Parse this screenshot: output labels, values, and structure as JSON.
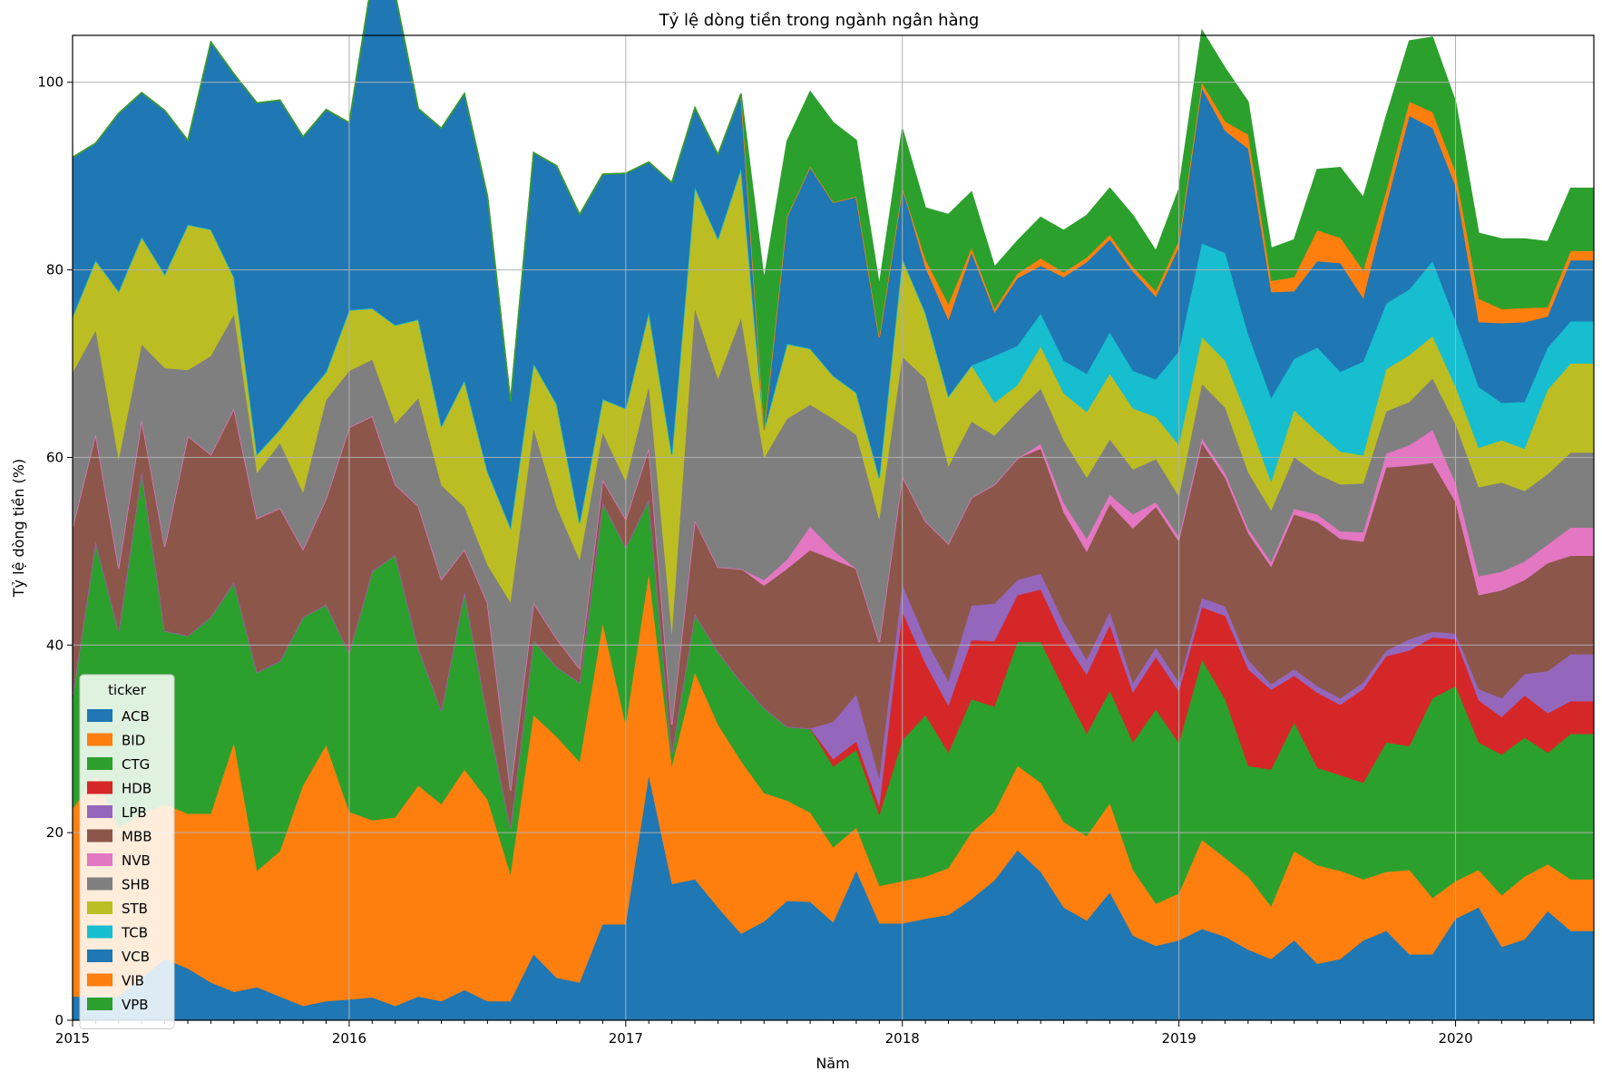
{
  "chart_data": {
    "type": "area",
    "stacked": true,
    "title": "Tỷ lệ dòng tiền trong ngành ngân hàng",
    "xlabel": "Năm",
    "ylabel": "Tỷ lệ dòng tiền (%)",
    "x_start": "2015-01",
    "x_end": "2020-07",
    "x_major_ticks": [
      "2015",
      "2016",
      "2017",
      "2018",
      "2019",
      "2020"
    ],
    "ylim": [
      0,
      105
    ],
    "y_ticks": [
      0,
      20,
      40,
      60,
      80,
      100
    ],
    "grid": true,
    "legend": {
      "title": "ticker",
      "position": "lower-left"
    },
    "x": [
      "2015-01",
      "2015-02",
      "2015-03",
      "2015-04",
      "2015-05",
      "2015-06",
      "2015-07",
      "2015-08",
      "2015-09",
      "2015-10",
      "2015-11",
      "2015-12",
      "2016-01",
      "2016-02",
      "2016-03",
      "2016-04",
      "2016-05",
      "2016-06",
      "2016-07",
      "2016-08",
      "2016-09",
      "2016-10",
      "2016-11",
      "2016-12",
      "2017-01",
      "2017-02",
      "2017-03",
      "2017-04",
      "2017-05",
      "2017-06",
      "2017-07",
      "2017-08",
      "2017-09",
      "2017-10",
      "2017-11",
      "2017-12",
      "2018-01",
      "2018-02",
      "2018-03",
      "2018-04",
      "2018-05",
      "2018-06",
      "2018-07",
      "2018-08",
      "2018-09",
      "2018-10",
      "2018-11",
      "2018-12",
      "2019-01",
      "2019-02",
      "2019-03",
      "2019-04",
      "2019-05",
      "2019-06",
      "2019-07",
      "2019-08",
      "2019-09",
      "2019-10",
      "2019-11",
      "2019-12",
      "2020-01",
      "2020-02",
      "2020-03",
      "2020-04",
      "2020-05",
      "2020-06",
      "2020-07"
    ],
    "series": [
      {
        "name": "ACB",
        "color": "#1f77b4",
        "values": [
          2.5,
          2.5,
          2.5,
          4.5,
          6.5,
          5.5,
          4.0,
          3.0,
          3.5,
          2.5,
          1.5,
          2.0,
          2.2,
          2.4,
          1.5,
          2.5,
          2.0,
          3.2,
          2.0,
          2.0,
          7.0,
          4.5,
          4.0,
          10.2,
          10.2,
          26.0,
          14.5,
          15.0,
          12.0,
          9.2,
          10.5,
          12.7,
          12.6,
          10.4,
          15.9,
          10.3,
          10.3,
          10.8,
          11.2,
          12.9,
          14.9,
          18.1,
          15.8,
          12.0,
          10.6,
          13.6,
          9.0,
          7.9,
          8.5,
          9.7,
          8.9,
          7.5,
          6.5,
          8.5,
          6.0,
          6.5,
          8.5,
          9.5,
          7.0,
          7.0,
          10.8,
          12.0,
          7.8,
          8.6,
          11.6,
          9.5,
          9.5
        ]
      },
      {
        "name": "BID",
        "color": "#ff7f0e",
        "values": [
          20.0,
          23.5,
          18.0,
          17.5,
          16.5,
          16.5,
          18.0,
          26.5,
          12.4,
          15.5,
          23.5,
          27.3,
          20.0,
          18.9,
          20.1,
          22.5,
          21.0,
          23.5,
          21.5,
          13.5,
          25.5,
          25.7,
          23.5,
          32.0,
          21.2,
          21.5,
          12.5,
          22.0,
          19.5,
          18.4,
          13.7,
          10.7,
          9.5,
          8.0,
          4.6,
          4.0,
          4.5,
          4.5,
          5.0,
          7.1,
          7.3,
          9.0,
          9.5,
          9.1,
          9.0,
          9.5,
          7.0,
          4.5,
          5.0,
          9.5,
          8.4,
          7.8,
          5.6,
          9.5,
          10.5,
          9.4,
          6.5,
          6.3,
          9.0,
          6.0,
          4.0,
          4.0,
          5.5,
          6.7,
          5.0,
          5.5,
          5.5
        ]
      },
      {
        "name": "CTG",
        "color": "#2ca02c",
        "values": [
          12.0,
          25.0,
          21.0,
          36.5,
          18.5,
          19.0,
          21.0,
          17.2,
          21.2,
          20.3,
          18.0,
          15.0,
          17.0,
          26.6,
          28.0,
          14.7,
          10.0,
          19.0,
          9.0,
          5.0,
          8.0,
          7.5,
          8.5,
          13.0,
          19.0,
          8.0,
          1.5,
          6.3,
          7.8,
          8.5,
          9.1,
          7.9,
          9.0,
          8.6,
          8.3,
          7.5,
          15.0,
          17.2,
          12.3,
          14.2,
          11.2,
          13.2,
          15.0,
          14.2,
          10.9,
          12.0,
          13.6,
          20.7,
          16.0,
          19.2,
          16.9,
          11.8,
          14.6,
          13.7,
          10.4,
          10.2,
          10.3,
          13.8,
          13.2,
          21.3,
          20.8,
          13.6,
          15.0,
          14.8,
          11.9,
          15.5,
          15.5
        ]
      },
      {
        "name": "HDB",
        "color": "#d62728",
        "values": [
          0,
          0,
          0,
          0,
          0,
          0,
          0,
          0,
          0,
          0,
          0,
          0,
          0,
          0,
          0,
          0,
          0,
          0,
          0,
          0,
          0,
          0,
          0,
          0,
          0,
          0,
          0,
          0,
          0,
          0,
          0,
          0,
          0,
          0.8,
          0.9,
          0.9,
          13.7,
          5.5,
          5.0,
          6.3,
          7.0,
          5.0,
          5.6,
          5.3,
          6.3,
          7.0,
          5.3,
          5.6,
          5.5,
          5.6,
          8.9,
          10.3,
          8.5,
          5.0,
          8.0,
          7.5,
          10.0,
          9.2,
          10.2,
          6.5,
          5.0,
          4.5,
          4.0,
          4.5,
          4.2,
          3.5,
          3.5
        ]
      },
      {
        "name": "LPB",
        "color": "#9467bd",
        "values": [
          0,
          0,
          0,
          0,
          0,
          0,
          0,
          0,
          0,
          0,
          0,
          0,
          0,
          0,
          0,
          0,
          0,
          0,
          0,
          0,
          0,
          0,
          0,
          0,
          0,
          0,
          0,
          0,
          0,
          0,
          0,
          0,
          0,
          4.0,
          5.0,
          3.0,
          2.9,
          2.6,
          2.6,
          3.7,
          4.0,
          1.6,
          1.7,
          1.8,
          1.6,
          1.4,
          1.0,
          1.0,
          1.0,
          1.0,
          1.0,
          1.0,
          0.6,
          0.7,
          0.7,
          0.7,
          0.7,
          0.6,
          1.2,
          0.6,
          0.6,
          1.2,
          2.0,
          2.3,
          4.5,
          5.0,
          5.0
        ]
      },
      {
        "name": "MBB",
        "color": "#8c564b",
        "values": [
          18.0,
          11.5,
          6.7,
          5.5,
          9.0,
          21.3,
          17.3,
          18.5,
          16.4,
          16.3,
          7.2,
          11.3,
          24.0,
          16.5,
          7.5,
          15.1,
          14.0,
          4.5,
          12.0,
          4.0,
          4.0,
          3.0,
          1.5,
          2.4,
          3.0,
          5.5,
          3.0,
          10.0,
          9.0,
          12.0,
          13.0,
          16.8,
          19.0,
          17.3,
          13.4,
          14.6,
          11.6,
          12.6,
          14.7,
          11.5,
          12.7,
          13.0,
          13.3,
          11.7,
          11.5,
          11.5,
          16.5,
          15.0,
          15.0,
          16.5,
          13.7,
          13.5,
          12.5,
          16.5,
          17.5,
          17.0,
          15.0,
          19.5,
          18.5,
          18.0,
          14.0,
          10.0,
          11.5,
          10.0,
          11.5,
          10.5,
          10.5
        ]
      },
      {
        "name": "NVB",
        "color": "#e377c2",
        "values": [
          0,
          0,
          0,
          0,
          0,
          0,
          0,
          0,
          0,
          0,
          0,
          0,
          0,
          0,
          0,
          0,
          0,
          0,
          0,
          0,
          0,
          0,
          0,
          0,
          0,
          0,
          0,
          0,
          0,
          0,
          0.6,
          1.0,
          2.5,
          1.0,
          0,
          0,
          0,
          0,
          0,
          0,
          0,
          0,
          0.5,
          1.0,
          1.4,
          1.0,
          1.5,
          0.5,
          0.5,
          0.5,
          0.5,
          0.5,
          0.5,
          0.6,
          0.8,
          0.8,
          1.0,
          1.5,
          2.2,
          3.5,
          2.0,
          2.0,
          2.0,
          2.0,
          2.0,
          3.0,
          3.0
        ]
      },
      {
        "name": "SHB",
        "color": "#7f7f7f",
        "values": [
          16.5,
          11.0,
          11.5,
          8.0,
          19.0,
          7.0,
          10.5,
          10.0,
          4.8,
          6.9,
          6.0,
          10.5,
          6.0,
          6.0,
          6.5,
          11.5,
          10.0,
          4.5,
          4.0,
          20.0,
          18.5,
          14.0,
          11.5,
          5.0,
          4.0,
          6.5,
          9.5,
          22.5,
          20.0,
          26.7,
          13.0,
          15.0,
          13.0,
          14.0,
          14.3,
          13.0,
          12.7,
          15.2,
          8.2,
          8.1,
          5.2,
          5.0,
          5.9,
          6.7,
          6.5,
          5.9,
          4.8,
          4.6,
          4.3,
          5.8,
          7.0,
          6.0,
          5.5,
          5.5,
          4.3,
          5.0,
          5.2,
          4.5,
          4.6,
          5.5,
          6.3,
          9.5,
          9.5,
          7.5,
          7.5,
          8.0,
          8.0
        ]
      },
      {
        "name": "STB",
        "color": "#bcbd22",
        "values": [
          6.0,
          7.5,
          18.0,
          11.5,
          10.0,
          15.5,
          13.5,
          4.0,
          2.0,
          1.5,
          10.0,
          3.0,
          6.5,
          5.5,
          10.5,
          8.4,
          6.3,
          13.5,
          10.0,
          8.0,
          7.0,
          11.0,
          4.0,
          3.6,
          7.8,
          8.0,
          19.3,
          13.0,
          15.0,
          16.0,
          3.0,
          8.0,
          6.0,
          4.6,
          4.5,
          4.5,
          10.5,
          7.0,
          7.5,
          6.0,
          3.5,
          2.8,
          4.5,
          5.0,
          7.0,
          7.0,
          6.5,
          4.5,
          5.5,
          5.0,
          5.0,
          5.7,
          3.0,
          5.0,
          4.5,
          3.5,
          3.0,
          4.5,
          5.0,
          4.5,
          4.0,
          4.2,
          4.5,
          4.5,
          9.0,
          9.5,
          9.5
        ]
      },
      {
        "name": "TCB",
        "color": "#17becf",
        "values": [
          0,
          0,
          0,
          0,
          0,
          0,
          0,
          0,
          0,
          0,
          0,
          0,
          0,
          0,
          0,
          0,
          0,
          0,
          0,
          0,
          0,
          0,
          0,
          0,
          0,
          0,
          0,
          0,
          0,
          0,
          0,
          0,
          0,
          0,
          0,
          0,
          0,
          0,
          0,
          0,
          5.0,
          4.2,
          3.5,
          3.5,
          4.1,
          4.4,
          4.0,
          4.0,
          10.0,
          10.0,
          11.5,
          9.0,
          9.0,
          5.5,
          9.0,
          8.5,
          10.0,
          7.0,
          7.0,
          8.0,
          7.0,
          6.5,
          4.0,
          5.0,
          4.5,
          4.5,
          4.5
        ]
      },
      {
        "name": "VCB",
        "color": "#1f77b4",
        "values": [
          17.0,
          12.5,
          19.0,
          15.4,
          17.5,
          9.0,
          20.0,
          21.7,
          37.5,
          35.1,
          28.0,
          28.0,
          20.0,
          35.2,
          35.3,
          22.5,
          31.8,
          30.6,
          29.4,
          13.5,
          22.5,
          25.4,
          32.9,
          24.0,
          25.1,
          16.0,
          29.0,
          8.5,
          9.0,
          8.0,
          0,
          13.6,
          19.4,
          18.5,
          20.9,
          15.0,
          7.5,
          4.8,
          8.1,
          12.0,
          4.6,
          7.2,
          5.1,
          8.9,
          11.9,
          9.9,
          10.6,
          8.8,
          11.1,
          16.5,
          13.0,
          19.8,
          11.3,
          7.2,
          9.2,
          11.6,
          6.7,
          10.5,
          18.5,
          14.2,
          14.4,
          6.9,
          8.5,
          8.5,
          3.3,
          6.5,
          6.5
        ]
      },
      {
        "name": "VIB",
        "color": "#ff7f0e",
        "values": [
          0,
          0,
          0,
          0,
          0,
          0,
          0,
          0,
          0,
          0,
          0,
          0,
          0,
          0,
          0,
          0,
          0,
          0,
          0,
          0,
          0,
          0,
          0,
          0,
          0,
          0,
          0,
          0,
          0,
          0,
          0,
          0,
          0,
          0,
          0,
          0,
          0,
          0.9,
          1.7,
          0.5,
          0.4,
          0.5,
          0.8,
          0.5,
          0.5,
          0.5,
          0.5,
          0.6,
          0.7,
          0.6,
          1.0,
          1.5,
          1.2,
          1.5,
          3.3,
          2.7,
          3.0,
          1.5,
          1.5,
          1.7,
          1.5,
          2.5,
          1.5,
          1.5,
          1.0,
          1.0,
          1.0
        ]
      },
      {
        "name": "VPB",
        "color": "#2ca02c",
        "values": [
          0,
          0,
          0,
          0,
          0,
          0,
          0,
          0,
          0,
          0,
          0,
          0,
          0,
          0,
          0,
          0,
          0,
          0,
          0,
          0,
          0,
          0,
          0,
          0,
          0,
          0,
          0,
          0,
          0,
          0,
          16.0,
          8.0,
          8.0,
          8.5,
          6.0,
          5.5,
          6.3,
          5.5,
          9.6,
          6.0,
          4.5,
          3.5,
          4.4,
          4.5,
          4.5,
          5.0,
          5.5,
          4.3,
          5.5,
          5.6,
          5.7,
          3.5,
          3.5,
          4.0,
          6.5,
          7.5,
          7.8,
          8.0,
          6.5,
          8.0,
          7.5,
          7.0,
          7.5,
          7.4,
          7.0,
          6.7,
          6.7
        ]
      }
    ]
  }
}
